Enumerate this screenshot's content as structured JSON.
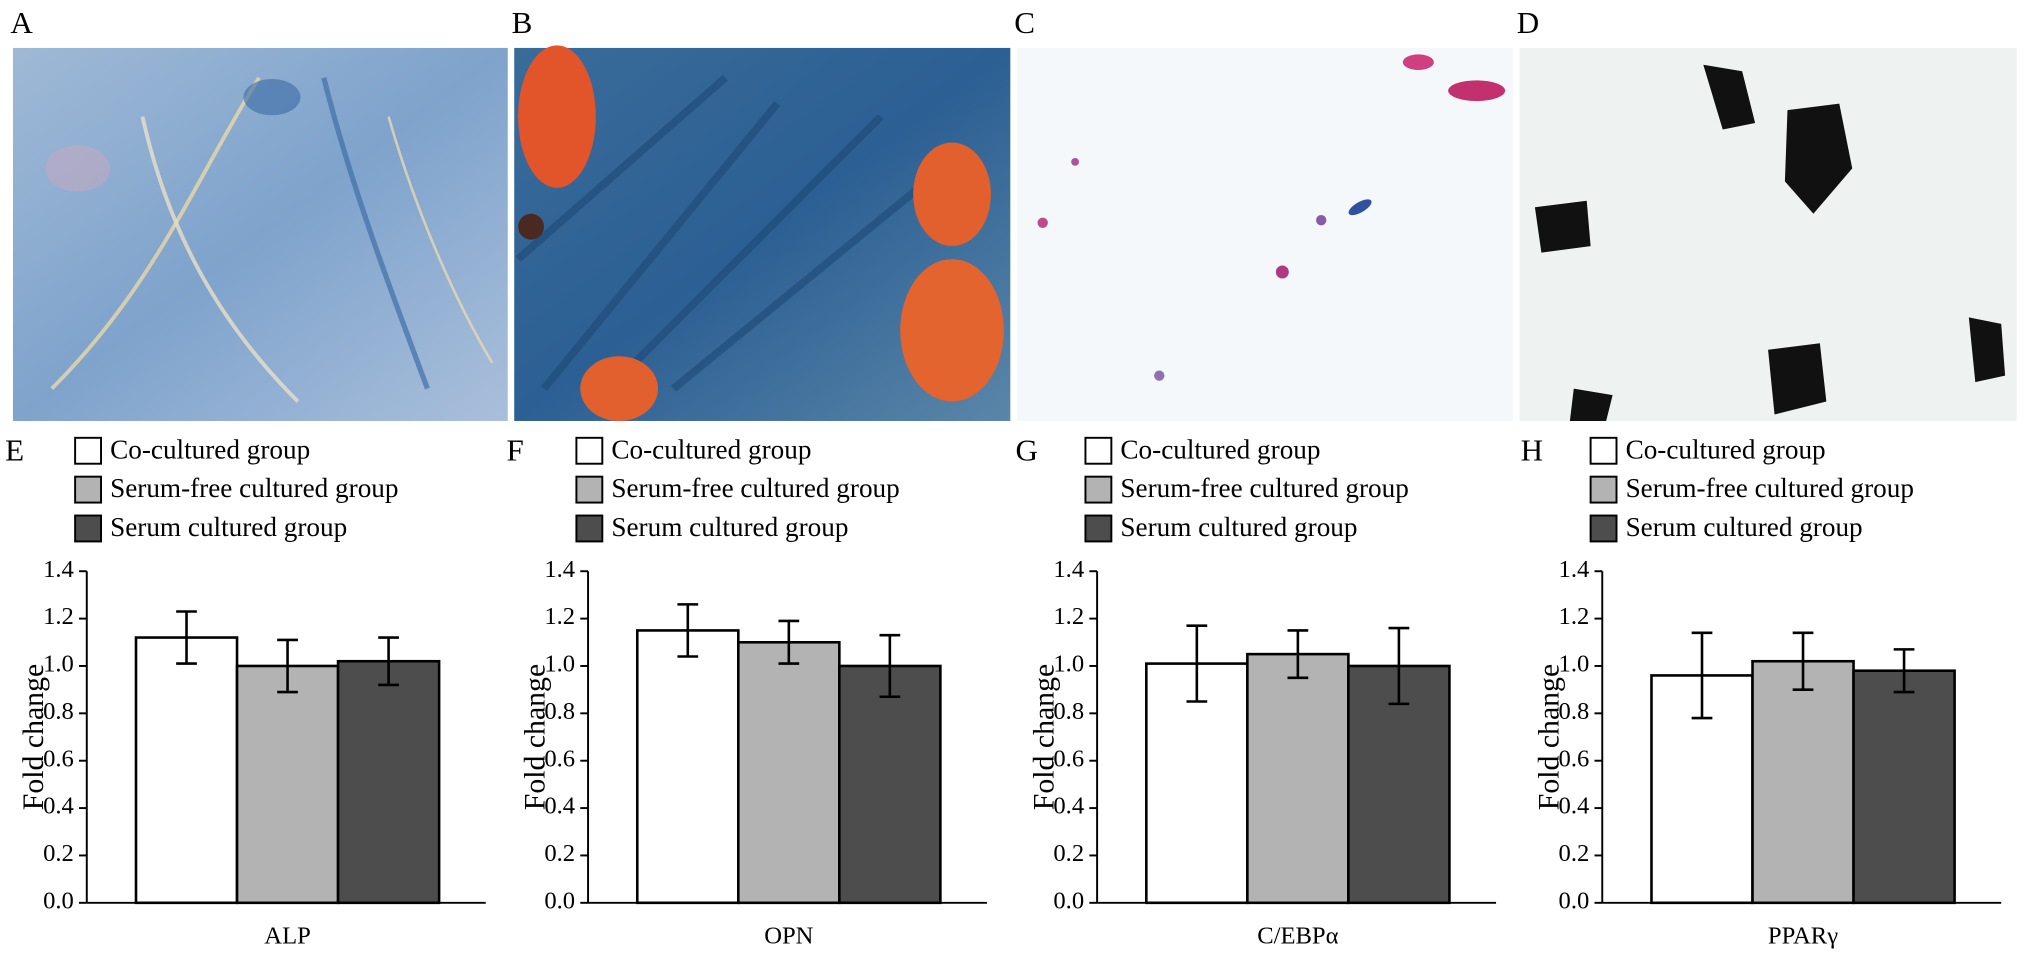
{
  "images": [
    {
      "label": "A"
    },
    {
      "label": "B"
    },
    {
      "label": "C"
    },
    {
      "label": "D"
    }
  ],
  "chart_data": [
    {
      "type": "bar",
      "panel_label": "E",
      "categories": [
        "ALP"
      ],
      "ylabel": "Fold change",
      "ylim": [
        0,
        1.4
      ],
      "yticks": [
        {
          "value": 0,
          "label": "0.0"
        },
        0.2,
        0.4,
        0.6,
        0.8,
        {
          "value": 1,
          "label": "1.0"
        },
        1.2,
        1.4
      ],
      "series": [
        {
          "name": "Co-cultured group",
          "color": "#ffffff",
          "values": [
            1.12
          ],
          "errors": [
            0.11
          ]
        },
        {
          "name": "Serum-free cultured group",
          "color": "#b3b3b3",
          "values": [
            1.0
          ],
          "errors": [
            0.11
          ]
        },
        {
          "name": "Serum cultured group",
          "color": "#4d4d4d",
          "values": [
            1.02
          ],
          "errors": [
            0.1
          ]
        }
      ]
    },
    {
      "type": "bar",
      "panel_label": "F",
      "categories": [
        "OPN"
      ],
      "ylabel": "Fold change",
      "ylim": [
        0,
        1.4
      ],
      "yticks": [
        {
          "value": 0,
          "label": "0.0"
        },
        0.2,
        0.4,
        0.6,
        0.8,
        {
          "value": 1,
          "label": "1.0"
        },
        1.2,
        1.4
      ],
      "series": [
        {
          "name": "Co-cultured group",
          "color": "#ffffff",
          "values": [
            1.15
          ],
          "errors": [
            0.11
          ]
        },
        {
          "name": "Serum-free cultured group",
          "color": "#b3b3b3",
          "values": [
            1.1
          ],
          "errors": [
            0.09
          ]
        },
        {
          "name": "Serum cultured group",
          "color": "#4d4d4d",
          "values": [
            1.0
          ],
          "errors": [
            0.13
          ]
        }
      ]
    },
    {
      "type": "bar",
      "panel_label": "G",
      "categories": [
        "C/EBPα"
      ],
      "ylabel": "Fold change",
      "ylim": [
        0,
        1.4
      ],
      "yticks": [
        {
          "value": 0,
          "label": "0.0"
        },
        0.2,
        0.4,
        0.6,
        0.8,
        {
          "value": 1,
          "label": "1.0"
        },
        1.2,
        1.4
      ],
      "series": [
        {
          "name": "Co-cultured group",
          "color": "#ffffff",
          "values": [
            1.01
          ],
          "errors": [
            0.16
          ]
        },
        {
          "name": "Serum-free cultured group",
          "color": "#b3b3b3",
          "values": [
            1.05
          ],
          "errors": [
            0.1
          ]
        },
        {
          "name": "Serum cultured group",
          "color": "#4d4d4d",
          "values": [
            1.0
          ],
          "errors": [
            0.16
          ]
        }
      ]
    },
    {
      "type": "bar",
      "panel_label": "H",
      "categories": [
        "PPARγ"
      ],
      "ylabel": "Fold change",
      "ylim": [
        0,
        1.4
      ],
      "yticks": [
        {
          "value": 0,
          "label": "0.0"
        },
        0.2,
        0.4,
        0.6,
        0.8,
        {
          "value": 1,
          "label": "1.0"
        },
        1.2,
        1.4
      ],
      "series": [
        {
          "name": "Co-cultured group",
          "color": "#ffffff",
          "values": [
            0.96
          ],
          "errors": [
            0.18
          ]
        },
        {
          "name": "Serum-free cultured group",
          "color": "#b3b3b3",
          "values": [
            1.02
          ],
          "errors": [
            0.12
          ]
        },
        {
          "name": "Serum cultured group",
          "color": "#4d4d4d",
          "values": [
            0.98
          ],
          "errors": [
            0.09
          ]
        }
      ]
    }
  ]
}
